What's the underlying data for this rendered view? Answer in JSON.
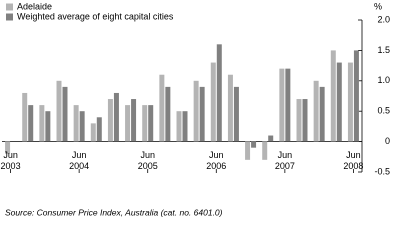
{
  "chart_data": {
    "type": "bar",
    "ylabel": "%",
    "source": "Source: Consumer Price Index, Australia (cat. no. 6401.0)",
    "categories": [
      "Jun 2003",
      null,
      null,
      null,
      "Jun 2004",
      null,
      null,
      null,
      "Jun 2005",
      null,
      null,
      null,
      "Jun 2006",
      null,
      null,
      null,
      "Jun 2007",
      null,
      null,
      null,
      "Jun 2008"
    ],
    "series": [
      {
        "name": "Adelaide",
        "color": "#b4b4b4",
        "values": [
          -0.2,
          0.8,
          0.6,
          1.0,
          0.6,
          0.3,
          0.7,
          0.6,
          0.6,
          1.1,
          0.5,
          1.0,
          1.3,
          1.1,
          -0.3,
          -0.3,
          1.2,
          0.7,
          1.0,
          1.5,
          1.3
        ]
      },
      {
        "name": "Weighted average of eight capital cities",
        "color": "#808080",
        "values": [
          0.0,
          0.6,
          0.5,
          0.9,
          0.5,
          0.4,
          0.8,
          0.7,
          0.6,
          0.9,
          0.5,
          0.9,
          1.6,
          0.9,
          -0.1,
          0.1,
          1.2,
          0.7,
          0.9,
          1.3,
          1.5
        ]
      }
    ],
    "ylim": [
      -0.5,
      2.0
    ],
    "yticks": [
      {
        "value": 2,
        "label": "2.0"
      },
      1.5,
      {
        "value": 1,
        "label": "1.0"
      },
      0.5,
      0,
      -0.5
    ],
    "y_axis_side": "right",
    "legend": "upper left",
    "grid": false
  }
}
